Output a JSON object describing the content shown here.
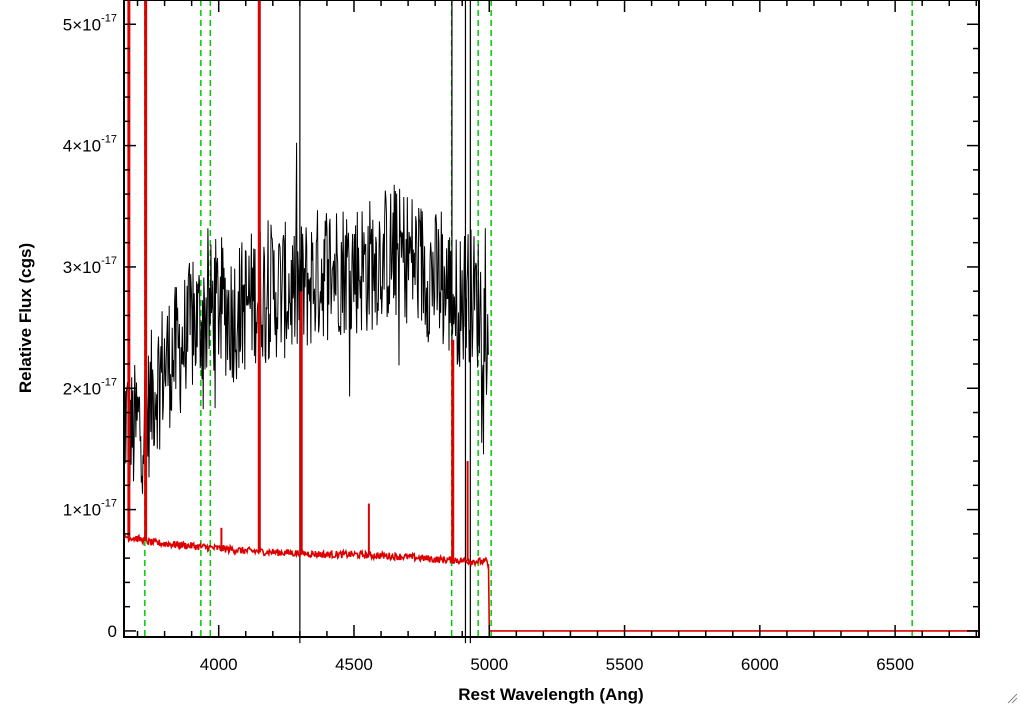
{
  "chart_data": {
    "type": "line",
    "xlabel": "Rest Wavelength (Ang)",
    "ylabel": "Relative Flux (cgs)",
    "xlim": [
      3650,
      6810
    ],
    "ylim": [
      -0.05,
      5.2
    ],
    "y_multiplier_note": "y values are in units of 10^-17",
    "x_ticks": [
      {
        "value": 4000,
        "label": "4000"
      },
      {
        "value": 4500,
        "label": "4500"
      },
      {
        "value": 5000,
        "label": "5000"
      },
      {
        "value": 5500,
        "label": "5500"
      },
      {
        "value": 6000,
        "label": "6000"
      },
      {
        "value": 6500,
        "label": "6500"
      }
    ],
    "y_ticks": [
      {
        "value": 0,
        "base": "0",
        "exp": ""
      },
      {
        "value": 1,
        "base": "1×10",
        "exp": "-17"
      },
      {
        "value": 2,
        "base": "2×10",
        "exp": "-17"
      },
      {
        "value": 3,
        "base": "3×10",
        "exp": "-17"
      },
      {
        "value": 4,
        "base": "4×10",
        "exp": "-17"
      },
      {
        "value": 5,
        "base": "5×10",
        "exp": "-17"
      }
    ],
    "series": [
      {
        "color": "#000000",
        "style": "noisy",
        "x": [
          3650,
          3680,
          3700,
          3730,
          3760,
          3800,
          3850,
          3900,
          3950,
          4000,
          4050,
          4100,
          4150,
          4200,
          4250,
          4300,
          4350,
          4400,
          4450,
          4500,
          4550,
          4600,
          4650,
          4700,
          4750,
          4800,
          4850,
          4880,
          4920,
          4960,
          4990,
          4998
        ],
        "y": [
          1.8,
          1.6,
          1.7,
          1.7,
          2.0,
          2.2,
          2.3,
          2.5,
          2.6,
          2.7,
          2.6,
          2.7,
          2.8,
          2.8,
          2.8,
          2.8,
          2.9,
          3.0,
          3.0,
          3.0,
          3.0,
          3.1,
          3.1,
          3.1,
          3.0,
          2.9,
          2.8,
          2.7,
          2.8,
          2.7,
          2.5,
          1.8
        ]
      },
      {
        "color": "#dd0000",
        "style": "smooth-noisy",
        "x": [
          3650,
          3700,
          3750,
          3800,
          3900,
          4000,
          4100,
          4200,
          4300,
          4400,
          4500,
          4600,
          4700,
          4800,
          4900,
          4990,
          4995,
          5000,
          6810
        ],
        "y": [
          0.78,
          0.76,
          0.73,
          0.72,
          0.7,
          0.68,
          0.66,
          0.65,
          0.64,
          0.63,
          0.63,
          0.62,
          0.61,
          0.59,
          0.58,
          0.57,
          0.55,
          0.0,
          0.0
        ]
      }
    ],
    "black_spikes": [
      {
        "x": 4300,
        "y_top": 5.6,
        "y_bottom": -0.1
      },
      {
        "x": 4862,
        "y_top": 5.6,
        "y_bottom": 2.3
      },
      {
        "x": 4912,
        "y_top": 5.6,
        "y_bottom": -0.1
      },
      {
        "x": 4930,
        "y_top": 5.6,
        "y_bottom": -0.1
      }
    ],
    "red_spikes": [
      {
        "x": 3668,
        "y_top": 5.6
      },
      {
        "x": 3730,
        "y_top": 5.6
      },
      {
        "x": 4150,
        "y_top": 5.6
      },
      {
        "x": 4305,
        "y_top": 2.8
      },
      {
        "x": 4865,
        "y_top": 2.4
      },
      {
        "x": 4920,
        "y_top": 1.4
      },
      {
        "x": 4555,
        "y_top": 1.05
      },
      {
        "x": 4010,
        "y_top": 0.85
      }
    ],
    "reference_lines": {
      "color": "#00cc00",
      "style": "dashed",
      "x": [
        3727,
        3934,
        3969,
        4861,
        4959,
        5007,
        6563
      ]
    }
  }
}
